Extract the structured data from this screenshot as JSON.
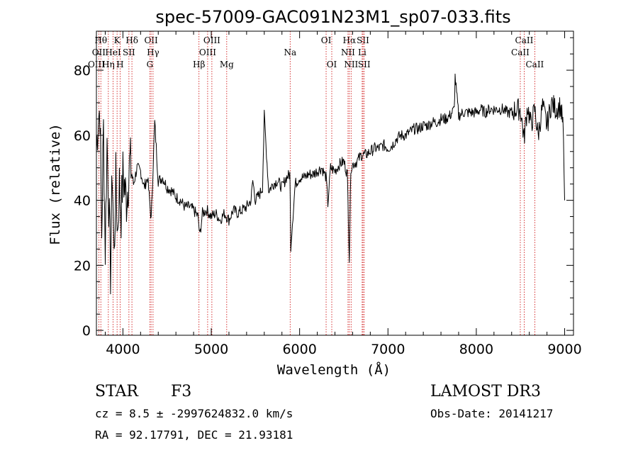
{
  "chart_data": {
    "type": "line",
    "title": "spec-57009-GAC091N23M1_sp07-033.fits",
    "xlabel": "Wavelength (Å)",
    "ylabel": "Flux (relative)",
    "xlim": [
      3700,
      9100
    ],
    "ylim": [
      -1.5,
      92
    ],
    "xticks": [
      4000,
      5000,
      6000,
      7000,
      8000,
      9000
    ],
    "yticks": [
      0,
      20,
      40,
      60,
      80
    ],
    "grid": false,
    "series": [
      {
        "name": "flux",
        "x": [
          3700,
          3720,
          3740,
          3760,
          3780,
          3800,
          3820,
          3840,
          3860,
          3880,
          3900,
          3920,
          3940,
          3960,
          3980,
          4000,
          4040,
          4080,
          4120,
          4160,
          4200,
          4240,
          4280,
          4320,
          4360,
          4400,
          4450,
          4500,
          4550,
          4600,
          4650,
          4700,
          4750,
          4800,
          4850,
          4870,
          4900,
          4950,
          5000,
          5050,
          5100,
          5150,
          5200,
          5250,
          5300,
          5350,
          5400,
          5450,
          5470,
          5500,
          5550,
          5580,
          5600,
          5650,
          5700,
          5750,
          5800,
          5850,
          5890,
          5900,
          5950,
          6000,
          6050,
          6100,
          6150,
          6200,
          6250,
          6300,
          6320,
          6350,
          6400,
          6450,
          6500,
          6540,
          6563,
          6580,
          6600,
          6650,
          6700,
          6750,
          6800,
          6850,
          6900,
          6950,
          7000,
          7050,
          7100,
          7150,
          7200,
          7250,
          7300,
          7350,
          7400,
          7450,
          7500,
          7550,
          7600,
          7650,
          7700,
          7750,
          7760,
          7800,
          7850,
          7900,
          7950,
          8000,
          8050,
          8100,
          8150,
          8200,
          8250,
          8300,
          8350,
          8400,
          8450,
          8500,
          8540,
          8580,
          8620,
          8660,
          8700,
          8750,
          8800,
          8850,
          8900,
          8950,
          8980,
          9000
        ],
        "y": [
          55,
          66,
          68,
          30,
          62,
          25,
          58,
          40,
          18,
          50,
          22,
          46,
          30,
          45,
          36,
          48,
          40,
          52,
          45,
          50,
          49,
          44,
          47,
          34,
          64,
          46,
          47,
          44,
          43,
          41,
          40,
          38,
          38,
          37,
          35,
          29,
          36,
          37,
          35,
          36,
          34,
          36,
          34,
          37,
          36,
          37,
          38,
          40,
          46,
          40,
          42,
          44,
          66,
          43,
          45,
          46,
          44,
          47,
          48,
          26,
          45,
          47,
          47,
          48,
          48,
          49,
          50,
          47,
          39,
          50,
          49,
          51,
          52,
          48,
          22,
          50,
          51,
          52,
          54,
          54,
          55,
          56,
          56,
          57,
          56,
          57,
          59,
          60,
          60,
          61,
          62,
          62,
          63,
          63,
          64,
          64,
          65,
          65,
          66,
          68,
          78,
          66,
          67,
          67,
          67,
          67,
          68,
          67,
          68,
          68,
          68,
          68,
          67,
          67,
          68,
          68,
          59,
          69,
          63,
          68,
          60,
          69,
          63,
          70,
          68,
          69,
          64,
          40
        ]
      }
    ],
    "lines_upper": [
      {
        "label": "Hθ",
        "x": 3750,
        "row": 0
      },
      {
        "label": "OII",
        "x": 3727,
        "row": 1
      },
      {
        "label": "OIII",
        "x": 3700,
        "row": 2
      },
      {
        "label": "K",
        "x": 3934,
        "row": 0
      },
      {
        "label": "HeI",
        "x": 3889,
        "row": 1
      },
      {
        "label": "Hη",
        "x": 3835,
        "row": 2
      },
      {
        "label": "Hδ",
        "x": 4102,
        "row": 0
      },
      {
        "label": "SII",
        "x": 4068,
        "row": 1
      },
      {
        "label": "H",
        "x": 3968,
        "row": 2
      },
      {
        "label": "OII",
        "x": 4319,
        "row": 0
      },
      {
        "label": "Hγ",
        "x": 4341,
        "row": 1
      },
      {
        "label": "G",
        "x": 4305,
        "row": 2
      },
      {
        "label": "OIII",
        "x": 5007,
        "row": 0
      },
      {
        "label": "OIII",
        "x": 4959,
        "row": 1
      },
      {
        "label": "Hβ",
        "x": 4861,
        "row": 2
      },
      {
        "label": "Mg",
        "x": 5175,
        "row": 2
      },
      {
        "label": "Na",
        "x": 5893,
        "row": 1
      },
      {
        "label": "OI",
        "x": 6300,
        "row": 0
      },
      {
        "label": "OI",
        "x": 6364,
        "row": 2
      },
      {
        "label": "Hα",
        "x": 6563,
        "row": 0
      },
      {
        "label": "SII",
        "x": 6717,
        "row": 0
      },
      {
        "label": "NII",
        "x": 6548,
        "row": 1
      },
      {
        "label": "Li",
        "x": 6708,
        "row": 1
      },
      {
        "label": "NII",
        "x": 6583,
        "row": 2
      },
      {
        "label": "SII",
        "x": 6731,
        "row": 2
      },
      {
        "label": "CaII",
        "x": 8542,
        "row": 0
      },
      {
        "label": "CaII",
        "x": 8498,
        "row": 1
      },
      {
        "label": "CaII",
        "x": 8662,
        "row": 2
      }
    ]
  },
  "info": {
    "object_type": "STAR",
    "subclass": "F3",
    "survey": "LAMOST DR3",
    "cz": "cz = 8.5 ± -2997624832.0 km/s",
    "obs_date": "Obs-Date: 20141217",
    "coords": "RA =  92.17791, DEC =  21.93181"
  },
  "colors": {
    "spectrum": "#000000",
    "line_marker": "#cc0000",
    "axes": "#000000"
  }
}
